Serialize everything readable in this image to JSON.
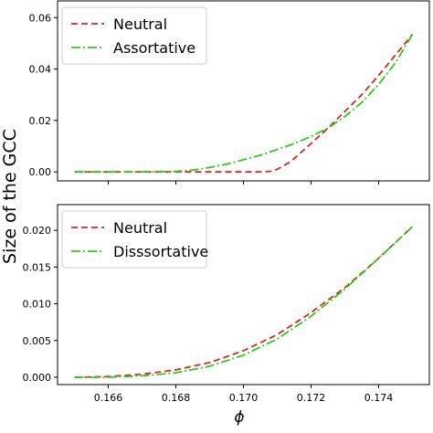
{
  "ylabel": "Size of the GCC",
  "xlabel": "ϕ",
  "xlim": [
    0.1645,
    0.1755
  ],
  "x_ticks": [
    "0.166",
    "0.168",
    "0.170",
    "0.172",
    "0.174"
  ],
  "x_tick_values": [
    0.166,
    0.168,
    0.17,
    0.172,
    0.174
  ],
  "colors": {
    "neutral": "#d62728",
    "assortative": "#2ecc1a",
    "dissortative": "#2ecc1a",
    "axes": "#000000",
    "legend_border": "#cccccc"
  },
  "chart_data": [
    {
      "type": "line",
      "ylim": [
        -0.0035,
        0.0665
      ],
      "y_ticks": [
        "0.00",
        "0.02",
        "0.04",
        "0.06"
      ],
      "y_tick_values": [
        0.0,
        0.02,
        0.04,
        0.06
      ],
      "legend_position": "top-left",
      "series": [
        {
          "name": "Neutral",
          "style": "dashed",
          "color": "#d62728",
          "x": [
            0.165,
            0.167,
            0.169,
            0.17,
            0.1705,
            0.1708,
            0.171,
            0.1712,
            0.1714,
            0.1717,
            0.172,
            0.1725,
            0.173,
            0.1735,
            0.174,
            0.1745,
            0.175
          ],
          "y": [
            0.0,
            0.0,
            0.0,
            0.0,
            0.0,
            0.0002,
            0.001,
            0.0025,
            0.004,
            0.0075,
            0.011,
            0.017,
            0.0235,
            0.03,
            0.0375,
            0.0455,
            0.0535
          ]
        },
        {
          "name": "Assortative",
          "style": "dashdot",
          "color": "#2ecc1a",
          "x": [
            0.165,
            0.167,
            0.168,
            0.1685,
            0.169,
            0.1695,
            0.17,
            0.1705,
            0.171,
            0.1715,
            0.172,
            0.1725,
            0.173,
            0.1735,
            0.174,
            0.1745,
            0.175
          ],
          "y": [
            0.0,
            0.0,
            0.0002,
            0.0007,
            0.0017,
            0.003,
            0.0047,
            0.0065,
            0.0087,
            0.011,
            0.0138,
            0.017,
            0.0215,
            0.027,
            0.034,
            0.0425,
            0.0535
          ]
        }
      ]
    },
    {
      "type": "line",
      "ylim": [
        -0.001,
        0.0235
      ],
      "y_ticks": [
        "0.000",
        "0.005",
        "0.010",
        "0.015",
        "0.020"
      ],
      "y_tick_values": [
        0.0,
        0.005,
        0.01,
        0.015,
        0.02
      ],
      "legend_position": "top-left",
      "series": [
        {
          "name": "Neutral",
          "style": "dashed",
          "color": "#d62728",
          "x": [
            0.165,
            0.166,
            0.167,
            0.168,
            0.169,
            0.17,
            0.171,
            0.172,
            0.173,
            0.174,
            0.175
          ],
          "y": [
            0.0,
            0.0001,
            0.0004,
            0.001,
            0.002,
            0.0036,
            0.0058,
            0.0088,
            0.0122,
            0.0162,
            0.0205
          ]
        },
        {
          "name": "Disssortative",
          "style": "dashdot",
          "color": "#2ecc1a",
          "x": [
            0.165,
            0.166,
            0.167,
            0.168,
            0.169,
            0.17,
            0.171,
            0.172,
            0.173,
            0.174,
            0.175
          ],
          "y": [
            0.0,
            0.0,
            0.0002,
            0.0006,
            0.0015,
            0.003,
            0.0052,
            0.0083,
            0.012,
            0.0162,
            0.0205
          ]
        }
      ]
    }
  ]
}
